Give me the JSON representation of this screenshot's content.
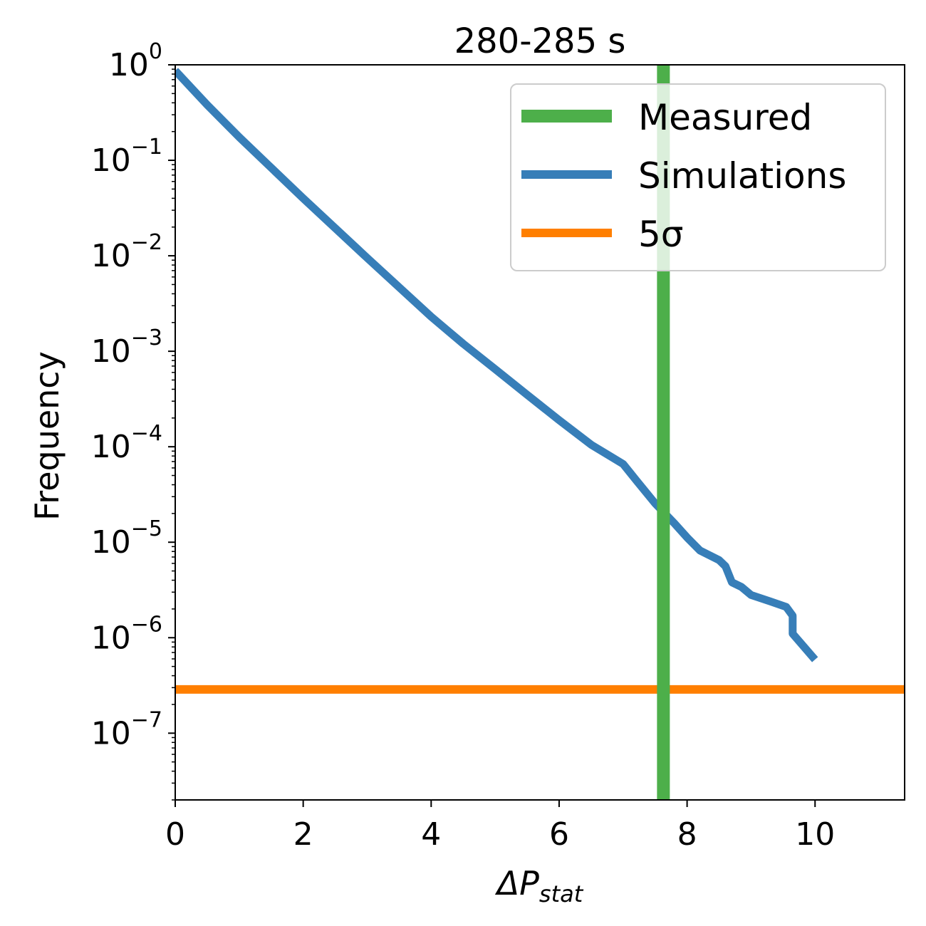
{
  "chart_data": {
    "type": "line",
    "title": "280-285 s",
    "xlabel": "ΔP",
    "xlabel_sub": "stat",
    "ylabel": "Frequency",
    "xlim": [
      0,
      11.4
    ],
    "ylim": [
      2e-08,
      1
    ],
    "yscale": "log",
    "grid": false,
    "legend_position": "top-right",
    "x_ticks": [
      {
        "value": 0,
        "label": "0"
      },
      {
        "value": 2,
        "label": "2"
      },
      {
        "value": 4,
        "label": "4"
      },
      {
        "value": 6,
        "label": "6"
      },
      {
        "value": 8,
        "label": "8"
      },
      {
        "value": 10,
        "label": "10"
      }
    ],
    "y_ticks": [
      {
        "value": 1,
        "base": "10",
        "exp": "0"
      },
      {
        "value": 0.1,
        "base": "10",
        "exp": "−1"
      },
      {
        "value": 0.01,
        "base": "10",
        "exp": "−2"
      },
      {
        "value": 0.001,
        "base": "10",
        "exp": "−3"
      },
      {
        "value": 0.0001,
        "base": "10",
        "exp": "−4"
      },
      {
        "value": 1e-05,
        "base": "10",
        "exp": "−5"
      },
      {
        "value": 1e-06,
        "base": "10",
        "exp": "−6"
      },
      {
        "value": 1e-07,
        "base": "10",
        "exp": "−7"
      }
    ],
    "series": [
      {
        "name": "Measured",
        "kind": "vline",
        "color": "#4daf4a",
        "x": 7.63
      },
      {
        "name": "Simulations",
        "kind": "line",
        "color": "#377eb8",
        "points": [
          [
            0.0,
            0.87
          ],
          [
            0.5,
            0.38
          ],
          [
            1.0,
            0.175
          ],
          [
            2.0,
            0.04
          ],
          [
            3.0,
            0.0095
          ],
          [
            4.0,
            0.0023
          ],
          [
            4.5,
            0.0012
          ],
          [
            5.0,
            0.00065
          ],
          [
            5.5,
            0.00035
          ],
          [
            6.0,
            0.00019
          ],
          [
            6.5,
            0.000105
          ],
          [
            7.0,
            6.6e-05
          ],
          [
            7.2,
            4.5e-05
          ],
          [
            7.5,
            2.55e-05
          ],
          [
            7.8,
            1.58e-05
          ],
          [
            8.0,
            1.12e-05
          ],
          [
            8.2,
            8.2e-06
          ],
          [
            8.5,
            6.5e-06
          ],
          [
            8.6,
            5.6e-06
          ],
          [
            8.7,
            3.8e-06
          ],
          [
            8.85,
            3.4e-06
          ],
          [
            9.0,
            2.8e-06
          ],
          [
            9.3,
            2.4e-06
          ],
          [
            9.55,
            2.1e-06
          ],
          [
            9.65,
            1.7e-06
          ],
          [
            9.65,
            1.1e-06
          ],
          [
            10.0,
            5.9e-07
          ]
        ]
      },
      {
        "name": "5σ",
        "kind": "hline",
        "color": "#ff7f00",
        "y": 2.87e-07
      }
    ]
  }
}
